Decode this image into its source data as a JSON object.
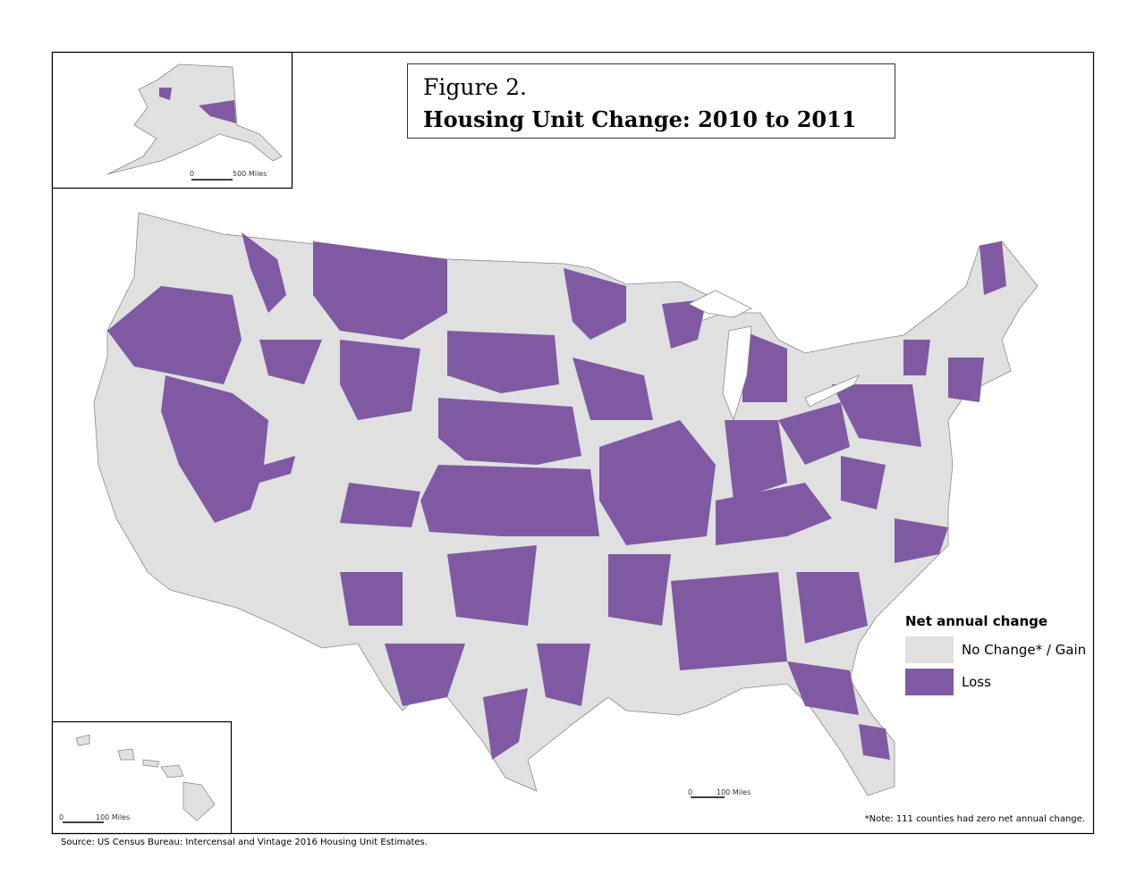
{
  "figure_label": "Figure 2.",
  "title": "Housing Unit Change: 2010 to 2011",
  "legend": {
    "title": "Net annual change",
    "items": [
      {
        "label": "No Change* / Gain",
        "color": "#e0e0e0"
      },
      {
        "label": "Loss",
        "color": "#7f5aa2"
      }
    ]
  },
  "alaska_scale": {
    "zero": "0",
    "label": "500 Miles"
  },
  "hawaii_scale": {
    "zero": "0",
    "label": "100 Miles"
  },
  "main_scale": {
    "zero": "0",
    "label": "100 Miles"
  },
  "note": "*Note: 111 counties had zero net annual change.",
  "source": "Source: US Census Bureau: Intercensal and Vintage 2016 Housing Unit Estimates."
}
